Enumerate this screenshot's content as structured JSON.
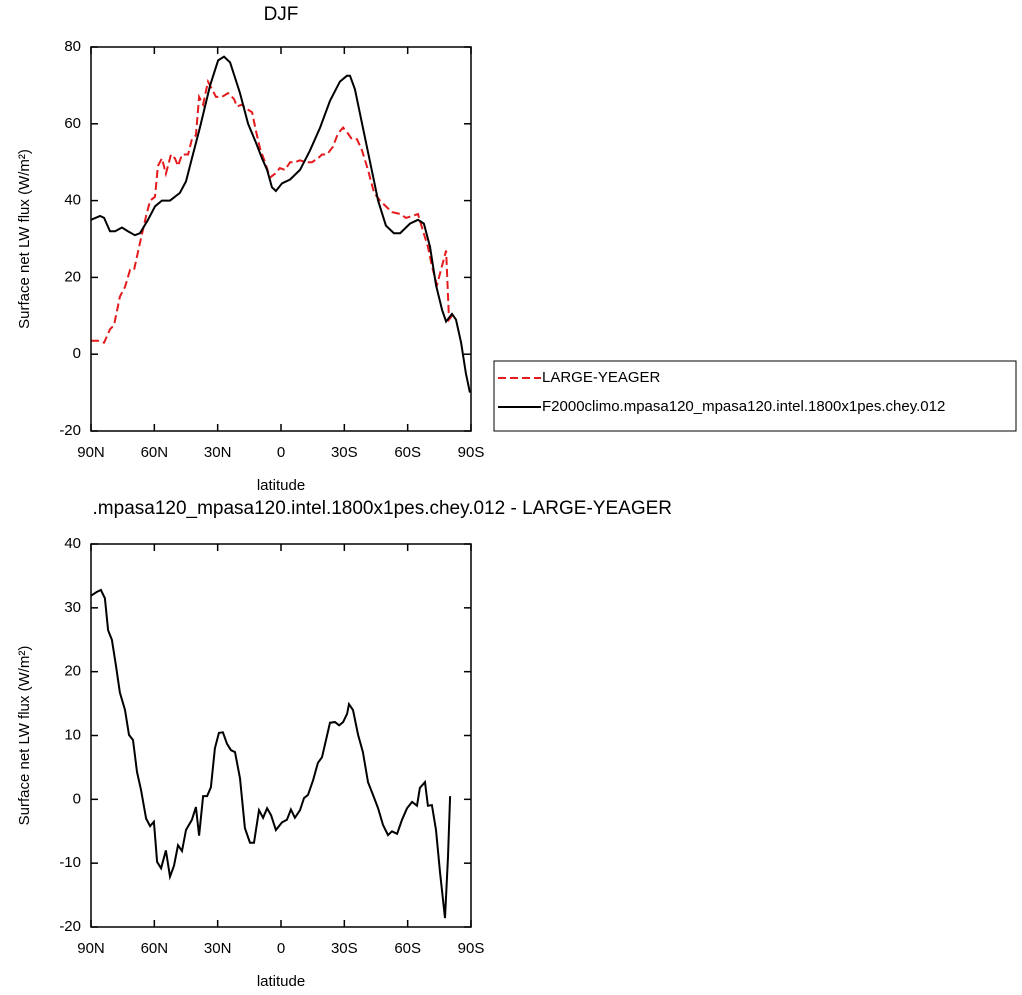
{
  "chart_data": [
    {
      "type": "line",
      "title": "DJF",
      "xlabel": "latitude",
      "ylabel": "Surface net LW flux (W/m²)",
      "xlim": [
        90,
        -90
      ],
      "ylim": [
        -20,
        80
      ],
      "xticks": [
        {
          "value": 90,
          "label": "90N"
        },
        {
          "value": 60,
          "label": "60N"
        },
        {
          "value": 30,
          "label": "30N"
        },
        0,
        {
          "value": -30,
          "label": "30S"
        },
        {
          "value": -60,
          "label": "60S"
        },
        {
          "value": -90,
          "label": "90S"
        }
      ],
      "yticks": [
        -20,
        0,
        20,
        40,
        60,
        80
      ],
      "legend": "outside-right",
      "series": [
        {
          "name": "LARGE-YEAGER",
          "color": "#e41a1c",
          "line_style": "dashed",
          "x": [
            90,
            86.7,
            83.8,
            81,
            79.1,
            76.3,
            73.9,
            71.5,
            69.6,
            66.8,
            63.9,
            62,
            59.7,
            58.3,
            56.4,
            54.5,
            52.1,
            50.2,
            48.8,
            46.9,
            44,
            42.2,
            40.3,
            38.8,
            36.9,
            34.6,
            32.7,
            30.8,
            28,
            25.1,
            22.3,
            20.8,
            18.5,
            16.6,
            13.7,
            11.8,
            9.9,
            7.6,
            5.2,
            2.8,
            0.5,
            -1.9,
            -4.3,
            -6.6,
            -9,
            -11.8,
            -14.7,
            -17.5,
            -19.4,
            -21.8,
            -24.6,
            -27,
            -29.4,
            -31.7,
            -33.6,
            -36,
            -38.4,
            -41.2,
            -44.1,
            -46.9,
            -49.7,
            -52.6,
            -56.4,
            -59.2,
            -62.1,
            -64.9,
            -67.3,
            -69.6,
            -71.5,
            -73.9,
            -75.8,
            -78.2,
            -79.6,
            -81
          ],
          "values": [
            3.5,
            3.5,
            3,
            6.5,
            7.5,
            15,
            17.5,
            22,
            22,
            29,
            36,
            40,
            41,
            49,
            51,
            47,
            52,
            51,
            49,
            52,
            52,
            56,
            57,
            67,
            65,
            71,
            69,
            67,
            67,
            68,
            66.5,
            64.5,
            65,
            64,
            63,
            58,
            53.5,
            50,
            46,
            47,
            48.5,
            48,
            50,
            50,
            50.5,
            50,
            50,
            51,
            52,
            52,
            54,
            57.5,
            59,
            57.5,
            56,
            56,
            53,
            48,
            42,
            40,
            38.5,
            37,
            36.5,
            35.5,
            36,
            36.5,
            32,
            28,
            23,
            18,
            22,
            27,
            9,
            10
          ]
        },
        {
          "name": "F2000climo.mpasa120_mpasa120.intel.1800x1pes.chey.012",
          "color": "#000000",
          "line_style": "solid",
          "x": [
            90,
            85.7,
            83.8,
            81,
            78.6,
            75.3,
            72.5,
            69.2,
            66.8,
            63,
            59.7,
            56.4,
            52.6,
            47.9,
            45,
            42.2,
            38.4,
            33.6,
            29.8,
            27,
            24.1,
            19.4,
            15.6,
            11.8,
            9,
            6.6,
            4.3,
            2.4,
            -0.5,
            -4.3,
            -9,
            -13.7,
            -18.5,
            -23.2,
            -27.9,
            -31.2,
            -32.7,
            -35,
            -38.4,
            -42.2,
            -46,
            -49.7,
            -53.5,
            -56.4,
            -61.1,
            -64.9,
            -67.7,
            -70.6,
            -73.4,
            -76.3,
            -78.2,
            -81,
            -82.9,
            -85.3,
            -87.6,
            -89.5
          ],
          "values": [
            35,
            36,
            35.5,
            32,
            32,
            33,
            32,
            31,
            31.5,
            35,
            38.5,
            40,
            40,
            42,
            45,
            51,
            59,
            70,
            76.5,
            77.5,
            76,
            68,
            60,
            55,
            51,
            48,
            43.5,
            42.5,
            44.5,
            45.5,
            48,
            53,
            59,
            66,
            71,
            72.5,
            72.5,
            69,
            60,
            50,
            40,
            33.5,
            31.5,
            31.5,
            34,
            35,
            34,
            28,
            18,
            11.5,
            8.5,
            10.5,
            9,
            3,
            -5,
            -10
          ]
        }
      ]
    },
    {
      "type": "line",
      "title": ".mpasa120_mpasa120.intel.1800x1pes.chey.012 - LARGE-YEAGER",
      "xlabel": "latitude",
      "ylabel": "Surface net LW flux (W/m²)",
      "xlim": [
        90,
        -90
      ],
      "ylim": [
        -20,
        40
      ],
      "xticks": [
        {
          "value": 90,
          "label": "90N"
        },
        {
          "value": 60,
          "label": "60N"
        },
        {
          "value": 30,
          "label": "30N"
        },
        0,
        {
          "value": -30,
          "label": "30S"
        },
        {
          "value": -60,
          "label": "60S"
        },
        {
          "value": -90,
          "label": "90S"
        }
      ],
      "yticks": [
        -20,
        -10,
        0,
        10,
        20,
        30,
        40
      ],
      "series": [
        {
          "color": "#000000",
          "line_style": "solid",
          "x": [
            90,
            87.2,
            85.3,
            83.4,
            81.9,
            80.1,
            78.2,
            76.3,
            73.9,
            72,
            70.1,
            68.2,
            66.3,
            63.9,
            62,
            60.2,
            58.7,
            56.8,
            54.5,
            52.6,
            50.7,
            48.8,
            46.9,
            45,
            42.2,
            40.3,
            38.8,
            36.9,
            35,
            33.2,
            31.3,
            29.4,
            27.5,
            25.6,
            23.7,
            21.8,
            19.4,
            17.1,
            14.7,
            12.8,
            10.4,
            8.5,
            6.6,
            4.7,
            2.4,
            -0.5,
            -2.8,
            -4.7,
            -6.6,
            -9,
            -10.9,
            -12.8,
            -15.2,
            -17.5,
            -19.4,
            -21.3,
            -23.2,
            -25.6,
            -27.5,
            -29.4,
            -31.3,
            -32.2,
            -34.1,
            -36.5,
            -38.8,
            -41.2,
            -43.6,
            -46,
            -48.3,
            -50.7,
            -52.6,
            -55,
            -57.3,
            -59.7,
            -62.1,
            -64.4,
            -65.8,
            -68.2,
            -69.6,
            -71.5,
            -73.4,
            -75.3,
            -77.7,
            -79.1,
            -80.1
          ],
          "values": [
            31.9,
            32.5,
            32.8,
            31.5,
            26.5,
            25,
            21,
            16.7,
            14,
            10.1,
            9.3,
            4.3,
            1.5,
            -3,
            -4.2,
            -3.5,
            -9.8,
            -10.8,
            -8,
            -12.1,
            -10.4,
            -7.2,
            -8.1,
            -4.8,
            -3.2,
            -1.2,
            -5.7,
            0.5,
            0.5,
            1.9,
            8,
            10.4,
            10.5,
            8.7,
            7.7,
            7.4,
            3.3,
            -4.5,
            -6.8,
            -6.8,
            -1.7,
            -2.9,
            -1.4,
            -2.5,
            -4.8,
            -3.6,
            -3.2,
            -1.6,
            -2.9,
            -1.7,
            0.2,
            0.7,
            3,
            5.7,
            6.6,
            9.3,
            12,
            12.1,
            11.6,
            12.1,
            13.4,
            14.9,
            14,
            10.1,
            7.4,
            2.7,
            0.7,
            -1.4,
            -4,
            -5.6,
            -5,
            -5.4,
            -3.2,
            -1.4,
            -0.4,
            -1,
            1.8,
            2.7,
            -1,
            -0.9,
            -4.8,
            -11.4,
            -18.6,
            -9,
            0.5
          ]
        }
      ]
    }
  ]
}
